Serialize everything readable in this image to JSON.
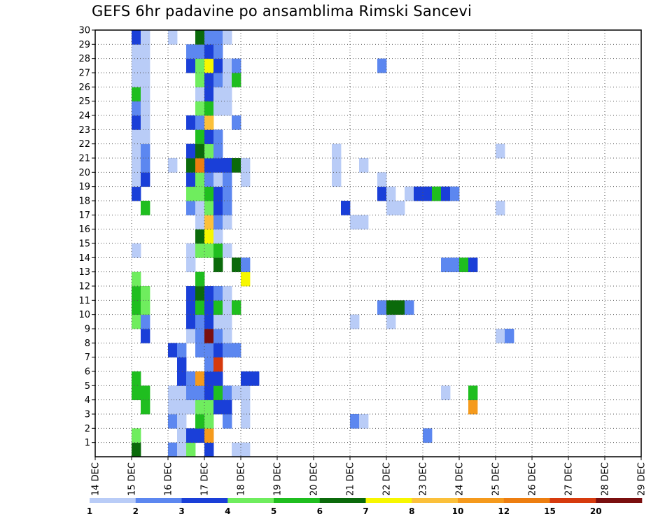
{
  "title": "GEFS 6hr padavine po ansamblima Rimski Sancevi",
  "chart_data": {
    "type": "heatmap",
    "title": "GEFS 6hr padavine po ansamblima Rimski Sancevi",
    "x_ticks": [
      "14 DEC",
      "15 DEC",
      "16 DEC",
      "17 DEC",
      "18 DEC",
      "19 DEC",
      "20 DEC",
      "21 DEC",
      "22 DEC",
      "23 DEC",
      "24 DEC",
      "25 DEC",
      "26 DEC",
      "27 DEC",
      "28 DEC",
      "29 DEC"
    ],
    "y_ticks": [
      1,
      2,
      3,
      4,
      5,
      6,
      7,
      8,
      9,
      10,
      11,
      12,
      13,
      14,
      15,
      16,
      17,
      18,
      19,
      20,
      21,
      22,
      23,
      24,
      25,
      26,
      27,
      28,
      29,
      30
    ],
    "x_step_hours": 6,
    "grid": true,
    "levels": [
      1,
      2,
      3,
      4,
      5,
      6,
      7,
      8,
      10,
      12,
      15,
      20
    ],
    "level_labels": [
      "1",
      "2",
      "3",
      "4",
      "5",
      "6",
      "7",
      "8",
      "10",
      "12",
      "15",
      "20"
    ],
    "colors": [
      "#b9ccf7",
      "#5c87f0",
      "#1a3fd8",
      "#6fed5e",
      "#1fbe1f",
      "#0b6a0b",
      "#f7f700",
      "#fbc03a",
      "#f59a1c",
      "#ed7e10",
      "#d63a0d",
      "#7a0f0f"
    ],
    "cells": [
      [
        4,
        0,
        5
      ],
      [
        4,
        1,
        3
      ],
      [
        4,
        4,
        4
      ],
      [
        4,
        5,
        4
      ],
      [
        4,
        9,
        3
      ],
      [
        4,
        10,
        4
      ],
      [
        4,
        11,
        4
      ],
      [
        4,
        12,
        3
      ],
      [
        4,
        14,
        0
      ],
      [
        4,
        18,
        2
      ],
      [
        4,
        19,
        0
      ],
      [
        4,
        20,
        0
      ],
      [
        4,
        21,
        0
      ],
      [
        4,
        22,
        0
      ],
      [
        4,
        23,
        2
      ],
      [
        4,
        24,
        1
      ],
      [
        4,
        25,
        4
      ],
      [
        4,
        26,
        0
      ],
      [
        4,
        27,
        0
      ],
      [
        4,
        28,
        0
      ],
      [
        4,
        29,
        2
      ],
      [
        5,
        3,
        4
      ],
      [
        5,
        4,
        4
      ],
      [
        5,
        8,
        2
      ],
      [
        5,
        9,
        1
      ],
      [
        5,
        10,
        3
      ],
      [
        5,
        11,
        3
      ],
      [
        5,
        17,
        4
      ],
      [
        5,
        19,
        2
      ],
      [
        5,
        20,
        1
      ],
      [
        5,
        21,
        1
      ],
      [
        5,
        22,
        0
      ],
      [
        5,
        23,
        0
      ],
      [
        5,
        24,
        0
      ],
      [
        5,
        25,
        0
      ],
      [
        5,
        26,
        0
      ],
      [
        5,
        27,
        0
      ],
      [
        5,
        28,
        0
      ],
      [
        5,
        29,
        0
      ],
      [
        8,
        0,
        1
      ],
      [
        8,
        2,
        1
      ],
      [
        8,
        3,
        0
      ],
      [
        8,
        4,
        0
      ],
      [
        8,
        7,
        2
      ],
      [
        8,
        20,
        0
      ],
      [
        8,
        29,
        0
      ],
      [
        9,
        0,
        0
      ],
      [
        9,
        1,
        0
      ],
      [
        9,
        2,
        0
      ],
      [
        9,
        3,
        0
      ],
      [
        9,
        4,
        0
      ],
      [
        9,
        5,
        2
      ],
      [
        9,
        6,
        2
      ],
      [
        9,
        7,
        1
      ],
      [
        10,
        0,
        3
      ],
      [
        10,
        1,
        2
      ],
      [
        10,
        3,
        0
      ],
      [
        10,
        4,
        1
      ],
      [
        10,
        5,
        1
      ],
      [
        10,
        8,
        0
      ],
      [
        10,
        9,
        2
      ],
      [
        10,
        10,
        2
      ],
      [
        10,
        11,
        2
      ],
      [
        10,
        13,
        0
      ],
      [
        10,
        14,
        0
      ],
      [
        10,
        17,
        1
      ],
      [
        10,
        18,
        3
      ],
      [
        10,
        19,
        2
      ],
      [
        10,
        20,
        5
      ],
      [
        10,
        21,
        2
      ],
      [
        10,
        23,
        2
      ],
      [
        10,
        27,
        2
      ],
      [
        10,
        28,
        1
      ],
      [
        11,
        1,
        2
      ],
      [
        11,
        2,
        4
      ],
      [
        11,
        3,
        3
      ],
      [
        11,
        4,
        1
      ],
      [
        11,
        5,
        8
      ],
      [
        11,
        7,
        1
      ],
      [
        11,
        8,
        1
      ],
      [
        11,
        9,
        1
      ],
      [
        11,
        10,
        4
      ],
      [
        11,
        11,
        5
      ],
      [
        11,
        12,
        4
      ],
      [
        11,
        14,
        3
      ],
      [
        11,
        15,
        5
      ],
      [
        11,
        16,
        0
      ],
      [
        11,
        17,
        0
      ],
      [
        11,
        18,
        3
      ],
      [
        11,
        19,
        3
      ],
      [
        11,
        20,
        9
      ],
      [
        11,
        21,
        5
      ],
      [
        11,
        22,
        4
      ],
      [
        11,
        23,
        1
      ],
      [
        11,
        24,
        3
      ],
      [
        11,
        25,
        0
      ],
      [
        11,
        26,
        3
      ],
      [
        11,
        27,
        3
      ],
      [
        11,
        28,
        1
      ],
      [
        11,
        29,
        5
      ],
      [
        12,
        0,
        2
      ],
      [
        12,
        1,
        8
      ],
      [
        12,
        2,
        3
      ],
      [
        12,
        3,
        3
      ],
      [
        12,
        4,
        2
      ],
      [
        12,
        5,
        2
      ],
      [
        12,
        6,
        1
      ],
      [
        12,
        7,
        1
      ],
      [
        12,
        8,
        11
      ],
      [
        12,
        9,
        2
      ],
      [
        12,
        10,
        2
      ],
      [
        12,
        11,
        2
      ],
      [
        12,
        14,
        3
      ],
      [
        12,
        15,
        6
      ],
      [
        12,
        16,
        7
      ],
      [
        12,
        17,
        3
      ],
      [
        12,
        18,
        4
      ],
      [
        12,
        19,
        1
      ],
      [
        12,
        20,
        2
      ],
      [
        12,
        21,
        3
      ],
      [
        12,
        22,
        2
      ],
      [
        12,
        23,
        7
      ],
      [
        12,
        24,
        4
      ],
      [
        12,
        25,
        2
      ],
      [
        12,
        26,
        2
      ],
      [
        12,
        27,
        6
      ],
      [
        12,
        28,
        2
      ],
      [
        12,
        29,
        1
      ],
      [
        13,
        3,
        2
      ],
      [
        13,
        4,
        4
      ],
      [
        13,
        5,
        2
      ],
      [
        13,
        6,
        10
      ],
      [
        13,
        7,
        2
      ],
      [
        13,
        8,
        1
      ],
      [
        13,
        9,
        0
      ],
      [
        13,
        10,
        4
      ],
      [
        13,
        11,
        1
      ],
      [
        13,
        13,
        5
      ],
      [
        13,
        14,
        4
      ],
      [
        13,
        15,
        0
      ],
      [
        13,
        16,
        1
      ],
      [
        13,
        17,
        2
      ],
      [
        13,
        18,
        2
      ],
      [
        13,
        19,
        0
      ],
      [
        13,
        20,
        2
      ],
      [
        13,
        21,
        1
      ],
      [
        13,
        22,
        1
      ],
      [
        13,
        24,
        0
      ],
      [
        13,
        25,
        0
      ],
      [
        13,
        26,
        1
      ],
      [
        13,
        27,
        2
      ],
      [
        13,
        28,
        1
      ],
      [
        13,
        29,
        1
      ],
      [
        14,
        2,
        1
      ],
      [
        14,
        3,
        2
      ],
      [
        14,
        4,
        1
      ],
      [
        14,
        7,
        1
      ],
      [
        14,
        8,
        0
      ],
      [
        14,
        9,
        0
      ],
      [
        14,
        10,
        0
      ],
      [
        14,
        11,
        0
      ],
      [
        14,
        14,
        0
      ],
      [
        14,
        16,
        0
      ],
      [
        14,
        17,
        1
      ],
      [
        14,
        18,
        1
      ],
      [
        14,
        19,
        1
      ],
      [
        14,
        20,
        2
      ],
      [
        14,
        24,
        0
      ],
      [
        14,
        25,
        0
      ],
      [
        14,
        26,
        0
      ],
      [
        14,
        27,
        0
      ],
      [
        14,
        29,
        0
      ],
      [
        15,
        0,
        0
      ],
      [
        15,
        4,
        0
      ],
      [
        15,
        7,
        1
      ],
      [
        15,
        10,
        4
      ],
      [
        15,
        13,
        5
      ],
      [
        15,
        20,
        5
      ],
      [
        15,
        23,
        1
      ],
      [
        15,
        26,
        4
      ],
      [
        15,
        27,
        1
      ],
      [
        16,
        0,
        0
      ],
      [
        16,
        2,
        0
      ],
      [
        16,
        3,
        0
      ],
      [
        16,
        4,
        0
      ],
      [
        16,
        5,
        2
      ],
      [
        16,
        12,
        6
      ],
      [
        16,
        13,
        1
      ],
      [
        16,
        19,
        0
      ],
      [
        16,
        20,
        0
      ],
      [
        17,
        5,
        2
      ],
      [
        26,
        19,
        0
      ],
      [
        26,
        20,
        0
      ],
      [
        26,
        21,
        0
      ],
      [
        27,
        17,
        2
      ],
      [
        28,
        2,
        1
      ],
      [
        28,
        9,
        0
      ],
      [
        28,
        16,
        0
      ],
      [
        29,
        2,
        0
      ],
      [
        29,
        16,
        0
      ],
      [
        29,
        20,
        0
      ],
      [
        31,
        10,
        1
      ],
      [
        31,
        18,
        2
      ],
      [
        31,
        19,
        0
      ],
      [
        31,
        27,
        1
      ],
      [
        32,
        9,
        0
      ],
      [
        32,
        10,
        5
      ],
      [
        32,
        17,
        0
      ],
      [
        32,
        18,
        0
      ],
      [
        33,
        10,
        5
      ],
      [
        33,
        17,
        0
      ],
      [
        34,
        10,
        1
      ],
      [
        34,
        18,
        0
      ],
      [
        35,
        18,
        2
      ],
      [
        36,
        1,
        1
      ],
      [
        36,
        18,
        2
      ],
      [
        37,
        18,
        4
      ],
      [
        38,
        4,
        0
      ],
      [
        38,
        13,
        1
      ],
      [
        38,
        18,
        2
      ],
      [
        39,
        13,
        1
      ],
      [
        39,
        18,
        1
      ],
      [
        40,
        13,
        4
      ],
      [
        41,
        3,
        8
      ],
      [
        41,
        4,
        4
      ],
      [
        41,
        13,
        2
      ],
      [
        44,
        8,
        0
      ],
      [
        44,
        17,
        0
      ],
      [
        44,
        21,
        0
      ],
      [
        45,
        8,
        1
      ]
    ]
  }
}
